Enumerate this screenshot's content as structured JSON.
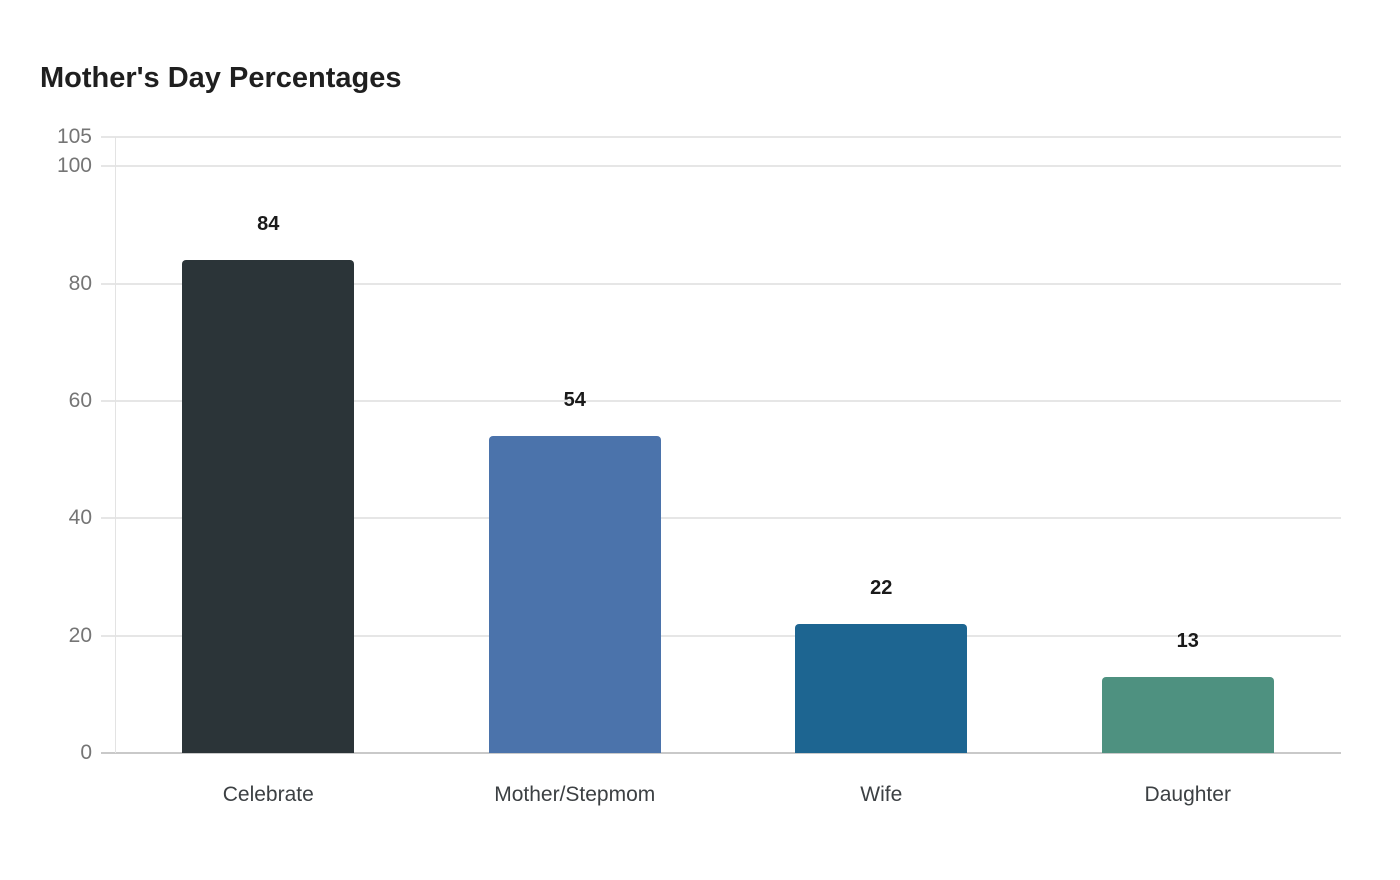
{
  "chart_data": {
    "type": "bar",
    "title": "Mother's Day Percentages",
    "categories": [
      "Celebrate",
      "Mother/Stepmom",
      "Wife",
      "Daughter"
    ],
    "values": [
      84,
      54,
      22,
      13
    ],
    "value_labels": [
      "84",
      "54",
      "22",
      "13"
    ],
    "bar_colors": [
      "#2b3438",
      "#4b73ab",
      "#1d6591",
      "#4e9180"
    ],
    "yticks": [
      0,
      20,
      40,
      60,
      80,
      100,
      105
    ],
    "ytick_labels": [
      "0",
      "20",
      "40",
      "60",
      "80",
      "100",
      "105"
    ],
    "ylim": [
      0,
      105
    ],
    "xlabel": "",
    "ylabel": "",
    "grid": true,
    "legend": "none",
    "colors": {
      "background": "#ffffff",
      "title_text": "#1f1f1f",
      "value_label_text": "#1a1a1a",
      "tick_label_text": "#757575",
      "category_label_text": "#3c4043",
      "gridline": "#e6e6e6",
      "baseline": "#c9c9c9",
      "axis_line": "#e3e3e3"
    }
  }
}
